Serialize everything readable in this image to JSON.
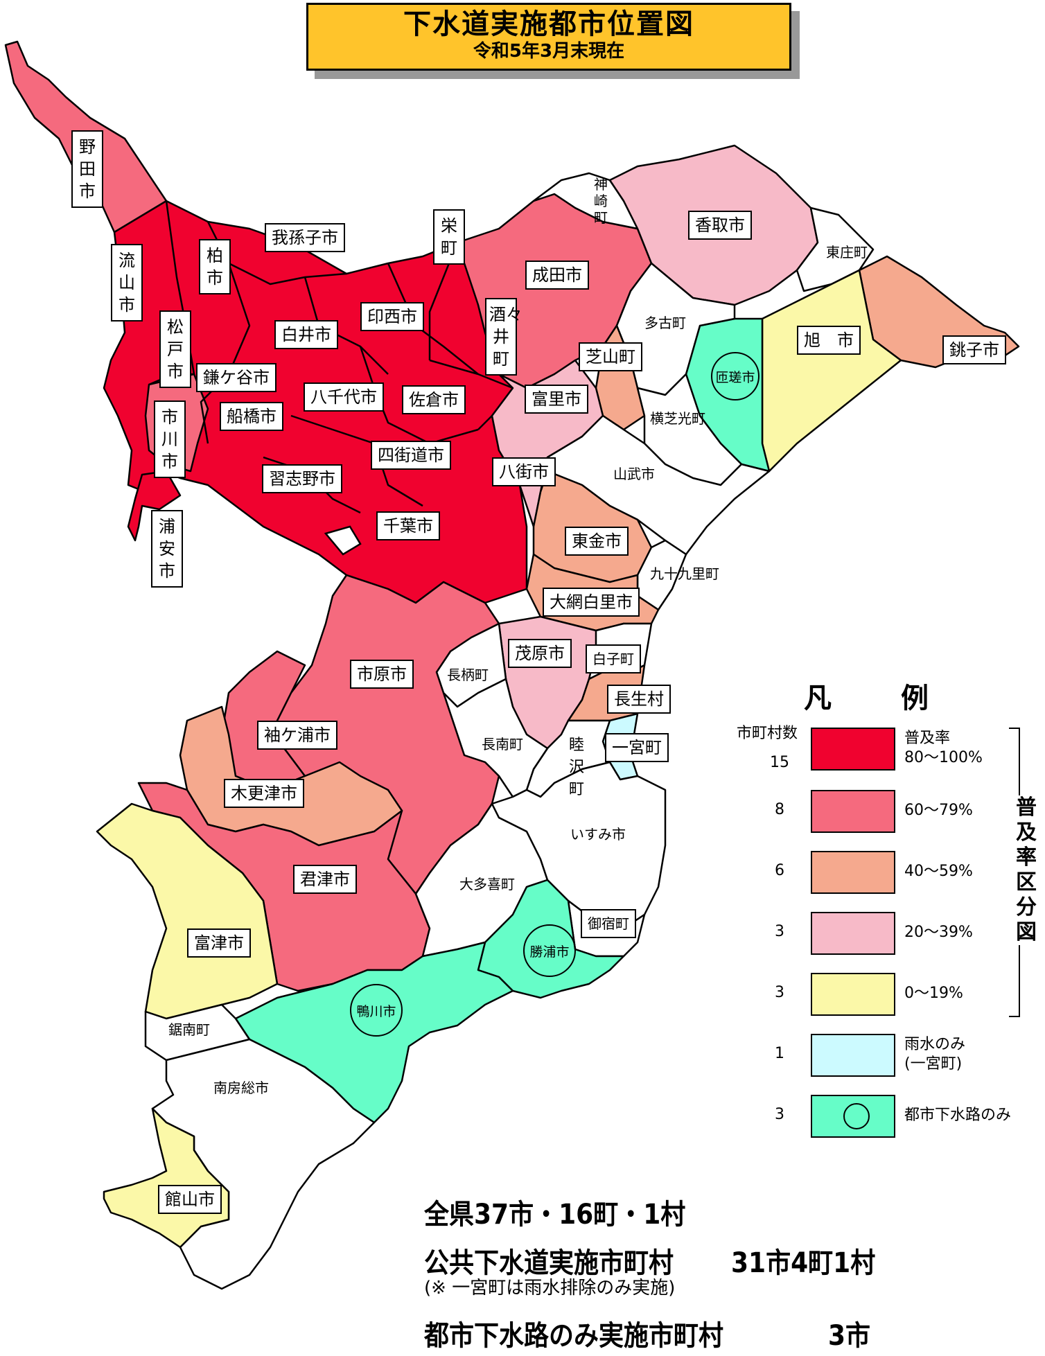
{
  "title": {
    "main": "下水道実施都市位置図",
    "sub": "令和5年3月末現在"
  },
  "colors": {
    "r80": "#f0022f",
    "r60": "#f56a7e",
    "r40": "#f5a98e",
    "r20": "#f7bac8",
    "r0": "#fbf8a8",
    "rain": "#ccfaff",
    "urban": "#66fdc8",
    "none": "#ffffff"
  },
  "municipalities": {
    "noda": "野田市",
    "nagareyama": "流山市",
    "kashiwa": "柏市",
    "abiko": "我孫子市",
    "matsudo": "松戸市",
    "kamagaya": "鎌ケ谷市",
    "ichikawa": "市川市",
    "funabashi": "船橋市",
    "urayasu": "浦安市",
    "narashino": "習志野市",
    "shiroi": "白井市",
    "inzai": "印西市",
    "yachiyo": "八千代市",
    "sakura": "佐倉市",
    "yotsukaido": "四街道市",
    "chiba": "千葉市",
    "sakae": "栄町",
    "shisui": "酒々井町",
    "narita": "成田市",
    "tomisato": "富里市",
    "yachimata": "八街市",
    "kozaki": "神崎町",
    "katori": "香取市",
    "tonosho": "東庄町",
    "tako": "多古町",
    "shibayama": "芝山町",
    "sosa": "匝瑳市",
    "asahi": "旭　市",
    "choshi": "銚子市",
    "yokoshibahikari": "横芝光町",
    "sammu": "山武市",
    "togane": "東金市",
    "kujukuri": "九十九里町",
    "oamishirasato": "大網白里市",
    "mobara": "茂原市",
    "shirako": "白子町",
    "chosei": "長生村",
    "nagara": "長柄町",
    "chonan": "長南町",
    "mutsuzawa": "睦沢町",
    "ichinomiya": "一宮町",
    "ichihara": "市原市",
    "sodegaura": "袖ケ浦市",
    "kisarazu": "木更津市",
    "kimitsu": "君津市",
    "futtsu": "富津市",
    "isumi": "いすみ市",
    "otaki": "大多喜町",
    "onjuku": "御宿町",
    "katsuura": "勝浦市",
    "kamogawa": "鴨川市",
    "kyonan": "鋸南町",
    "minamiboso": "南房総市",
    "tateyama": "館山市"
  },
  "legend": {
    "heading": "凡　例",
    "count_heading": "市町村数",
    "bracket_label": "普及率区分図",
    "items": [
      {
        "count": "15",
        "range": "普及率\n80～100%",
        "color": "#f0022f"
      },
      {
        "count": "8",
        "range": "60～79%",
        "color": "#f56a7e"
      },
      {
        "count": "6",
        "range": "40～59%",
        "color": "#f5a98e"
      },
      {
        "count": "3",
        "range": "20～39%",
        "color": "#f7bac8"
      },
      {
        "count": "3",
        "range": "0～19%",
        "color": "#fbf8a8"
      },
      {
        "count": "1",
        "range": "雨水のみ\n(一宮町)",
        "color": "#ccfaff"
      },
      {
        "count": "3",
        "range": "都市下水路のみ",
        "color": "#66fdc8"
      }
    ]
  },
  "summary": {
    "total": "全県37市・16町・1村",
    "public_label": "公共下水道実施市町村",
    "public_value": "31市4町1村",
    "public_note": "(※ 一宮町は雨水排除のみ実施)",
    "urban_label": "都市下水路のみ実施市町村",
    "urban_value": "3市"
  }
}
